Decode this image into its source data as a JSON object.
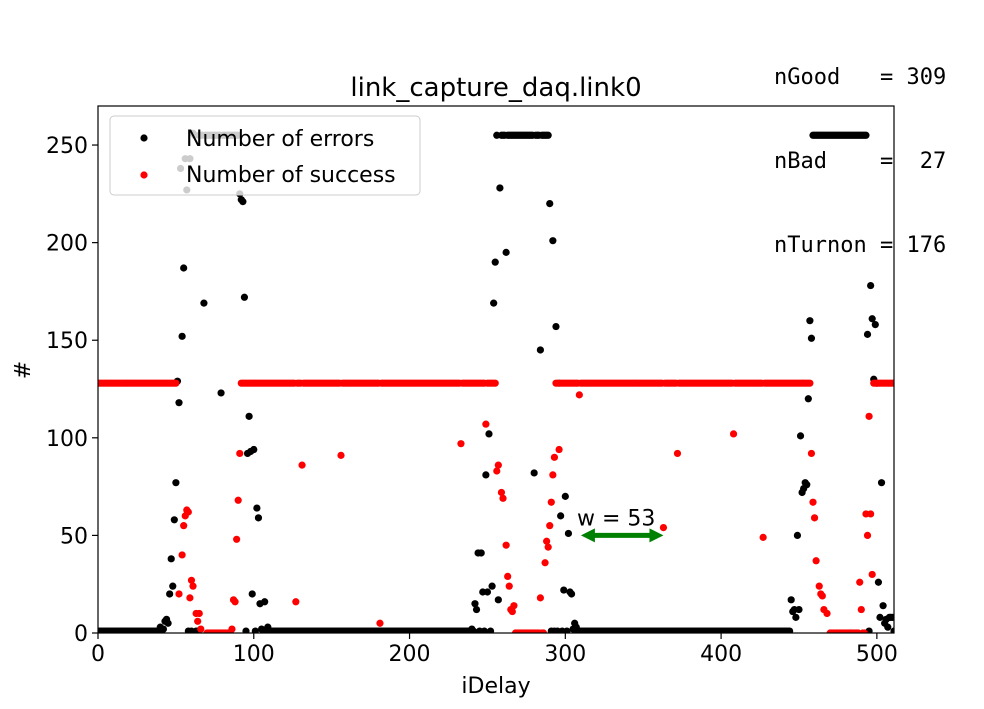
{
  "stats": {
    "line1": "nGood   = 309",
    "line2": "nBad    =  27",
    "line3": "nTurnon = 176"
  },
  "chart_data": {
    "type": "scatter",
    "title": "link_capture_daq.link0",
    "xlabel": "iDelay",
    "ylabel": "#",
    "xlim": [
      0,
      511
    ],
    "ylim": [
      0,
      270
    ],
    "xticks": [
      0,
      100,
      200,
      300,
      400,
      500
    ],
    "yticks": [
      0,
      50,
      100,
      150,
      200,
      250
    ],
    "grid": false,
    "legend_position": "top-left",
    "annotation": {
      "text": "w = 53",
      "x_start": 310,
      "x_end": 363,
      "y": 50,
      "color": "#008000"
    },
    "series": [
      {
        "name": "Number of errors",
        "color": "#000000",
        "base_value": 1,
        "high_value": 255,
        "high_ranges": [
          [
            66,
            90
          ],
          [
            256,
            290
          ],
          [
            456,
            494
          ]
        ],
        "points": [
          [
            40,
            3
          ],
          [
            42,
            2
          ],
          [
            43,
            6
          ],
          [
            44,
            7
          ],
          [
            45,
            5
          ],
          [
            46,
            20
          ],
          [
            47,
            38
          ],
          [
            48,
            24
          ],
          [
            49,
            58
          ],
          [
            50,
            77
          ],
          [
            51,
            129
          ],
          [
            52,
            118
          ],
          [
            53,
            238
          ],
          [
            54,
            152
          ],
          [
            55,
            187
          ],
          [
            56,
            243
          ],
          [
            57,
            227
          ],
          [
            59,
            243
          ],
          [
            61,
            256
          ],
          [
            62,
            255
          ],
          [
            65,
            255
          ],
          [
            68,
            169
          ],
          [
            75,
            255
          ],
          [
            79,
            123
          ],
          [
            88,
            255
          ],
          [
            91,
            225
          ],
          [
            92,
            222
          ],
          [
            93,
            221
          ],
          [
            94,
            172
          ],
          [
            96,
            92
          ],
          [
            97,
            111
          ],
          [
            98,
            93
          ],
          [
            99,
            20
          ],
          [
            100,
            94
          ],
          [
            102,
            64
          ],
          [
            103,
            59
          ],
          [
            104,
            15
          ],
          [
            105,
            2
          ],
          [
            107,
            16
          ],
          [
            109,
            3
          ],
          [
            240,
            2
          ],
          [
            242,
            15
          ],
          [
            243,
            12
          ],
          [
            244,
            41
          ],
          [
            246,
            41
          ],
          [
            247,
            21
          ],
          [
            249,
            81
          ],
          [
            250,
            21
          ],
          [
            251,
            102
          ],
          [
            253,
            24
          ],
          [
            254,
            169
          ],
          [
            255,
            190
          ],
          [
            257,
            17
          ],
          [
            258,
            228
          ],
          [
            262,
            195
          ],
          [
            280,
            82
          ],
          [
            284,
            145
          ],
          [
            290,
            220
          ],
          [
            292,
            201
          ],
          [
            294,
            157
          ],
          [
            296,
            128
          ],
          [
            297,
            60
          ],
          [
            299,
            22
          ],
          [
            300,
            70
          ],
          [
            302,
            51
          ],
          [
            303,
            21
          ],
          [
            304,
            20
          ],
          [
            305,
            2
          ],
          [
            306,
            5
          ],
          [
            307,
            3
          ],
          [
            445,
            17
          ],
          [
            446,
            11
          ],
          [
            447,
            12
          ],
          [
            448,
            8
          ],
          [
            449,
            50
          ],
          [
            450,
            12
          ],
          [
            451,
            101
          ],
          [
            452,
            72
          ],
          [
            453,
            74
          ],
          [
            454,
            77
          ],
          [
            455,
            76
          ],
          [
            456,
            120
          ],
          [
            457,
            160
          ],
          [
            458,
            151
          ],
          [
            494,
            153
          ],
          [
            496,
            178
          ],
          [
            497,
            161
          ],
          [
            498,
            130
          ],
          [
            499,
            158
          ],
          [
            500,
            128
          ],
          [
            501,
            26
          ],
          [
            502,
            8
          ],
          [
            503,
            77
          ],
          [
            504,
            14
          ],
          [
            505,
            5
          ],
          [
            506,
            7
          ],
          [
            507,
            3
          ],
          [
            508,
            8
          ],
          [
            509,
            8
          ],
          [
            510,
            8
          ]
        ]
      },
      {
        "name": "Number of success",
        "color": "#ff0000",
        "base_value": 128,
        "low_value": 0,
        "low_ranges": [
          [
            70,
            88
          ],
          [
            268,
            290
          ],
          [
            470,
            492
          ]
        ],
        "points": [
          [
            52,
            20
          ],
          [
            54,
            40
          ],
          [
            55,
            55
          ],
          [
            56,
            60
          ],
          [
            57,
            63
          ],
          [
            58,
            62
          ],
          [
            59,
            18
          ],
          [
            60,
            27
          ],
          [
            61,
            24
          ],
          [
            63,
            10
          ],
          [
            64,
            6
          ],
          [
            65,
            10
          ],
          [
            66,
            2
          ],
          [
            86,
            2
          ],
          [
            87,
            17
          ],
          [
            88,
            16
          ],
          [
            89,
            48
          ],
          [
            90,
            68
          ],
          [
            91,
            92
          ],
          [
            127,
            16
          ],
          [
            131,
            86
          ],
          [
            156,
            91
          ],
          [
            181,
            5
          ],
          [
            233,
            97
          ],
          [
            249,
            107
          ],
          [
            254,
            128
          ],
          [
            256,
            83
          ],
          [
            257,
            86
          ],
          [
            259,
            72
          ],
          [
            260,
            69
          ],
          [
            262,
            45
          ],
          [
            263,
            29
          ],
          [
            264,
            24
          ],
          [
            265,
            12
          ],
          [
            266,
            11
          ],
          [
            267,
            14
          ],
          [
            284,
            18
          ],
          [
            287,
            36
          ],
          [
            288,
            47
          ],
          [
            289,
            44
          ],
          [
            290,
            55
          ],
          [
            291,
            67
          ],
          [
            292,
            81
          ],
          [
            293,
            90
          ],
          [
            294,
            128
          ],
          [
            296,
            94
          ],
          [
            309,
            122
          ],
          [
            363,
            54
          ],
          [
            372,
            92
          ],
          [
            408,
            102
          ],
          [
            427,
            49
          ],
          [
            458,
            92
          ],
          [
            459,
            67
          ],
          [
            460,
            59
          ],
          [
            461,
            37
          ],
          [
            463,
            24
          ],
          [
            464,
            20
          ],
          [
            465,
            19
          ],
          [
            466,
            12
          ],
          [
            468,
            10
          ],
          [
            489,
            26
          ],
          [
            490,
            12
          ],
          [
            493,
            61
          ],
          [
            494,
            50
          ],
          [
            495,
            111
          ],
          [
            496,
            61
          ],
          [
            497,
            30
          ],
          [
            498,
            128
          ],
          [
            500,
            128
          ]
        ]
      }
    ]
  }
}
